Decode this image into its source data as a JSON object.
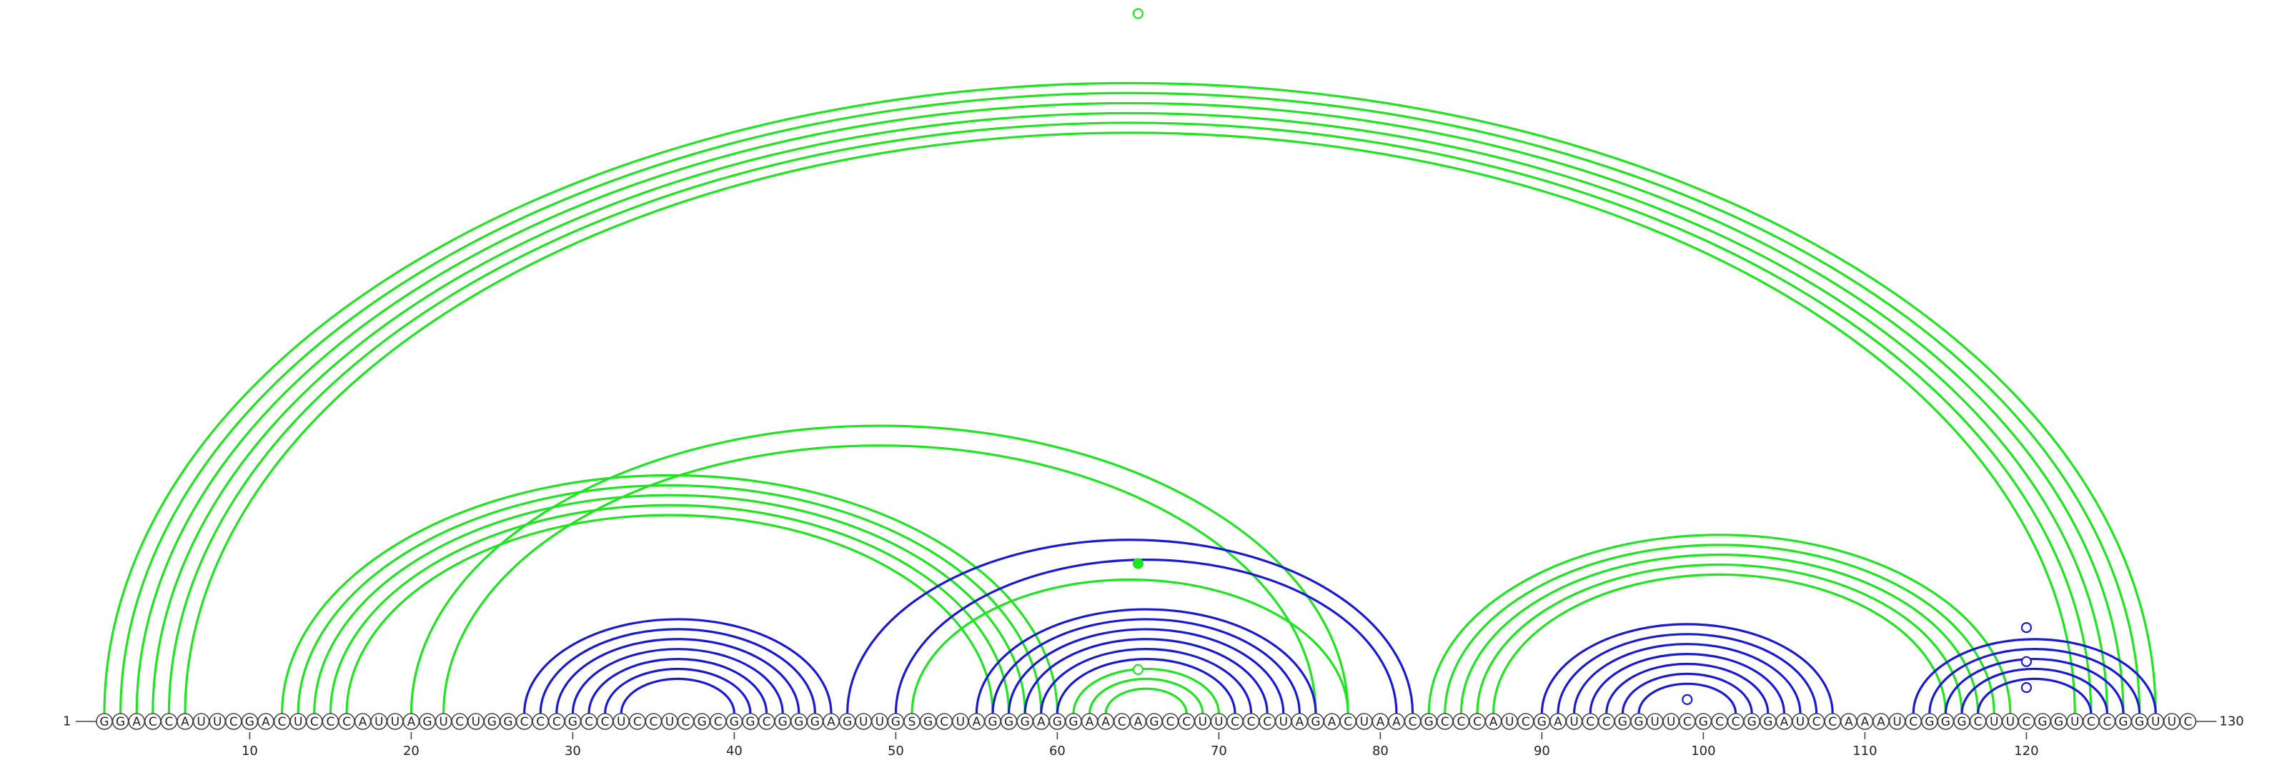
{
  "sequence": "GGACCAUUCGACUCCCAUUAGUCUGGCCCGCCUCCUCGCGGCGGGAGUUGSGCUAGGGAGGAACAGCCUUCCCUAGACUAACGCCCAUCGAUCCGGUUCGCCGGAUCCAAAUCGGGCUUCGGUCCGGUUC",
  "start_label": "1",
  "end_label": "130",
  "ticks": [
    10,
    20,
    30,
    40,
    50,
    60,
    70,
    80,
    90,
    100,
    110,
    120
  ],
  "colors": {
    "green": "#1ee61e",
    "blue": "#1a1ad6",
    "backbone": "#444444"
  },
  "pairs": {
    "green": [
      [
        1,
        128
      ],
      [
        2,
        127
      ],
      [
        3,
        126
      ],
      [
        4,
        125
      ],
      [
        5,
        124
      ],
      [
        6,
        123
      ],
      [
        12,
        60
      ],
      [
        13,
        59
      ],
      [
        14,
        58
      ],
      [
        15,
        57
      ],
      [
        16,
        56
      ],
      [
        20,
        78
      ],
      [
        22,
        76
      ],
      [
        51,
        78
      ],
      [
        61,
        70
      ],
      [
        62,
        69
      ],
      [
        63,
        68
      ],
      [
        83,
        119
      ],
      [
        84,
        118
      ],
      [
        85,
        117
      ],
      [
        86,
        116
      ],
      [
        87,
        115
      ]
    ],
    "blue": [
      [
        27,
        46
      ],
      [
        28,
        45
      ],
      [
        29,
        44
      ],
      [
        30,
        43
      ],
      [
        31,
        42
      ],
      [
        32,
        41
      ],
      [
        33,
        40
      ],
      [
        47,
        82
      ],
      [
        50,
        81
      ],
      [
        55,
        76
      ],
      [
        56,
        75
      ],
      [
        57,
        74
      ],
      [
        58,
        73
      ],
      [
        59,
        72
      ],
      [
        60,
        71
      ],
      [
        90,
        108
      ],
      [
        91,
        107
      ],
      [
        92,
        106
      ],
      [
        93,
        105
      ],
      [
        94,
        104
      ],
      [
        95,
        103
      ],
      [
        96,
        102
      ],
      [
        113,
        128
      ],
      [
        114,
        127
      ],
      [
        115,
        126
      ],
      [
        116,
        125
      ],
      [
        117,
        124
      ]
    ]
  },
  "markers": [
    {
      "index": 65,
      "height": 35,
      "color": "green",
      "filled": false
    },
    {
      "index": 65,
      "height": 7.5,
      "color": "green",
      "filled": true
    },
    {
      "index": 65,
      "height": 2.2,
      "color": "green",
      "filled": false
    },
    {
      "index": 99,
      "height": 0.7,
      "color": "blue",
      "filled": false
    },
    {
      "index": 120,
      "height": 4.3,
      "color": "blue",
      "filled": false
    },
    {
      "index": 120,
      "height": 2.6,
      "color": "blue",
      "filled": false
    },
    {
      "index": 120,
      "height": 1.3,
      "color": "blue",
      "filled": false
    }
  ]
}
